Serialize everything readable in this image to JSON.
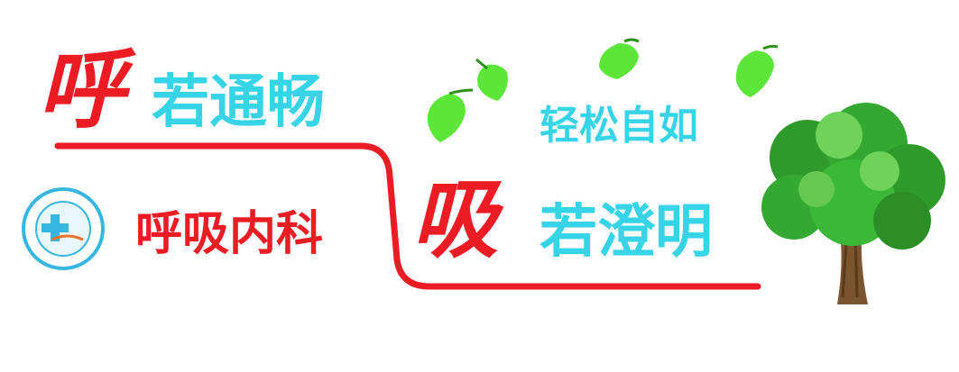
{
  "banner": {
    "char_hu": "呼",
    "phrase_tongchang": "若通畅",
    "char_xi": "吸",
    "phrase_chengming": "若澄明",
    "phrase_qingsong": "轻松自如",
    "department": "呼吸内科"
  },
  "logo": {
    "icon": "hospital-cross-emblem"
  },
  "decor": {
    "tree": "tree-icon",
    "leaves": "leaf-icon"
  },
  "colors": {
    "red": "#ed1c24",
    "cyan": "#36d4e6",
    "leaf_green": "#5ce63a",
    "trunk": "#7a5530"
  }
}
